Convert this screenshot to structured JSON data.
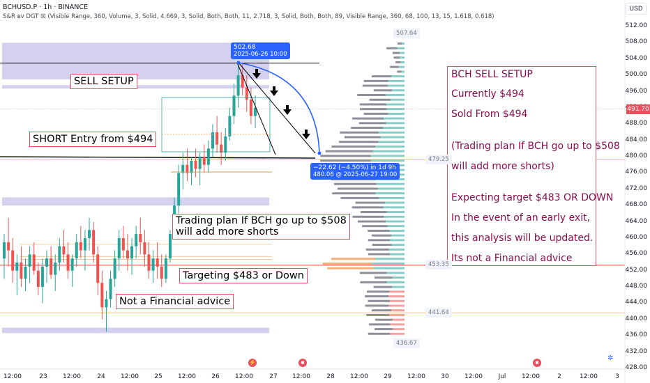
{
  "header": {
    "symbol_line": "BCHUSD.P · 1h · BINANCE",
    "indicator_line": "S&R ᴃv DGT ☒ (Visible Range, 360, Volume, 3, Solid, 4.669, 3, Solid, Both, Both, 11, 2.718, 3, Solid, Both, Both, 89, Visible Range, 360, 68, 100, 13, 15, 1.618, 0.618)"
  },
  "currency_button": "USD",
  "colors": {
    "bull": "#26a69a",
    "bear": "#ef5350",
    "annotation_text": "#880e4f",
    "annotation_border": "#e8505b",
    "zone": "#c5c1ea",
    "accent": "#2962ff"
  },
  "annotations": {
    "sell_setup": "SELL SETUP",
    "short_entry": "SHORT Entry from $494",
    "plan_line1": "Trading plan If BCH go up to $508",
    "plan_line2": "will add more shorts",
    "targeting": "Targeting $483 or Down",
    "not_advice": "Not a Financial advice"
  },
  "right_box": {
    "lines": [
      "BCH SELL SETUP",
      "Currently $494",
      "Sold From $494",
      "(Trading plan If BCH go up to $508",
      "will add more shorts)",
      "Expecting target $483 OR DOWN",
      "In the event of an early exit,",
      "this analysis will be updated.",
      "Its not a Financial advice"
    ]
  },
  "tooltips": {
    "top_price": "502.68",
    "top_date": "2025-06-26 10:00",
    "measure_line1": "−22.62 (−4.50%) in 1d 9h",
    "measure_line2": "480.06 @ 2025-06-27  19:00"
  },
  "level_labels": [
    "507.64",
    "479.25",
    "453.35",
    "441.64",
    "436.67"
  ],
  "current_price": "491.70",
  "y_axis": {
    "ticks": [
      "512.00",
      "508.00",
      "504.00",
      "500.00",
      "496.00",
      "492.00",
      "488.00",
      "484.00",
      "480.00",
      "476.00",
      "472.00",
      "468.00",
      "464.00",
      "460.00",
      "456.00",
      "452.00",
      "448.00",
      "444.00",
      "440.00",
      "436.00",
      "432.00",
      "428.00"
    ]
  },
  "x_axis": {
    "ticks": [
      "12:00",
      "23",
      "12:00",
      "24",
      "12:00",
      "25",
      "12:00",
      "26",
      "12:00",
      "27",
      "12:00",
      "28",
      "12:00",
      "29",
      "12:00",
      "30",
      "12:00",
      "Jul",
      "12:00",
      "2",
      "12:00",
      "3"
    ]
  },
  "chart_data": {
    "type": "candlestick",
    "timeframe": "1h",
    "symbol": "BCHUSD.P",
    "exchange": "BINANCE",
    "ylim": [
      428,
      514
    ],
    "candles_ohlc": [
      [
        455,
        461,
        450,
        459
      ],
      [
        459,
        465,
        453,
        457
      ],
      [
        457,
        460,
        449,
        452
      ],
      [
        452,
        456,
        446,
        454
      ],
      [
        454,
        458,
        448,
        450
      ],
      [
        450,
        455,
        447,
        453
      ],
      [
        453,
        458,
        449,
        456
      ],
      [
        456,
        459,
        451,
        452
      ],
      [
        452,
        454,
        446,
        448
      ],
      [
        448,
        455,
        444,
        453
      ],
      [
        453,
        457,
        449,
        455
      ],
      [
        455,
        458,
        450,
        451
      ],
      [
        451,
        456,
        447,
        454
      ],
      [
        454,
        460,
        452,
        458
      ],
      [
        458,
        462,
        454,
        456
      ],
      [
        456,
        459,
        450,
        452
      ],
      [
        452,
        456,
        448,
        455
      ],
      [
        455,
        461,
        453,
        459
      ],
      [
        459,
        463,
        455,
        457
      ],
      [
        457,
        462,
        452,
        460
      ],
      [
        460,
        465,
        457,
        462
      ],
      [
        462,
        464,
        454,
        456
      ],
      [
        456,
        458,
        446,
        449
      ],
      [
        449,
        452,
        440,
        443
      ],
      [
        443,
        447,
        437,
        445
      ],
      [
        445,
        452,
        443,
        450
      ],
      [
        450,
        457,
        448,
        455
      ],
      [
        455,
        462,
        452,
        460
      ],
      [
        460,
        463,
        455,
        457
      ],
      [
        457,
        461,
        452,
        455
      ],
      [
        455,
        460,
        451,
        458
      ],
      [
        458,
        463,
        455,
        461
      ],
      [
        461,
        465,
        456,
        459
      ],
      [
        459,
        462,
        453,
        456
      ],
      [
        456,
        459,
        450,
        452
      ],
      [
        452,
        457,
        449,
        455
      ],
      [
        455,
        459,
        450,
        453
      ],
      [
        453,
        456,
        448,
        450
      ],
      [
        450,
        456,
        449,
        455
      ],
      [
        455,
        462,
        454,
        461
      ],
      [
        461,
        470,
        460,
        468
      ],
      [
        468,
        478,
        466,
        476
      ],
      [
        476,
        481,
        472,
        478
      ],
      [
        478,
        482,
        474,
        476
      ],
      [
        476,
        480,
        473,
        479
      ],
      [
        479,
        482,
        475,
        477
      ],
      [
        477,
        481,
        473,
        480
      ],
      [
        480,
        483,
        476,
        478
      ],
      [
        478,
        484,
        476,
        482
      ],
      [
        482,
        488,
        480,
        486
      ],
      [
        486,
        490,
        481,
        483
      ],
      [
        483,
        486,
        478,
        481
      ],
      [
        481,
        487,
        479,
        485
      ],
      [
        485,
        492,
        484,
        490
      ],
      [
        490,
        498,
        488,
        495
      ],
      [
        495,
        502.68,
        492,
        500
      ],
      [
        500,
        503,
        495,
        497
      ],
      [
        497,
        500,
        491,
        494
      ],
      [
        494,
        497,
        488,
        490
      ],
      [
        490,
        495,
        487,
        492
      ]
    ],
    "levels": {
      "resistance_line": 503,
      "support_line": 480,
      "yellow_line": 479.25,
      "red_line": 453.35,
      "yellow_low_line": 441.64
    },
    "zones": [
      [
        499,
        508
      ],
      [
        468,
        470
      ],
      [
        436.67,
        438
      ]
    ],
    "measure": {
      "from_price": 502.68,
      "to_price": 480.06,
      "change": -22.62,
      "change_pct": -4.5,
      "duration": "1d 9h"
    },
    "volume_profile_price_range": [
      436,
      508
    ]
  }
}
